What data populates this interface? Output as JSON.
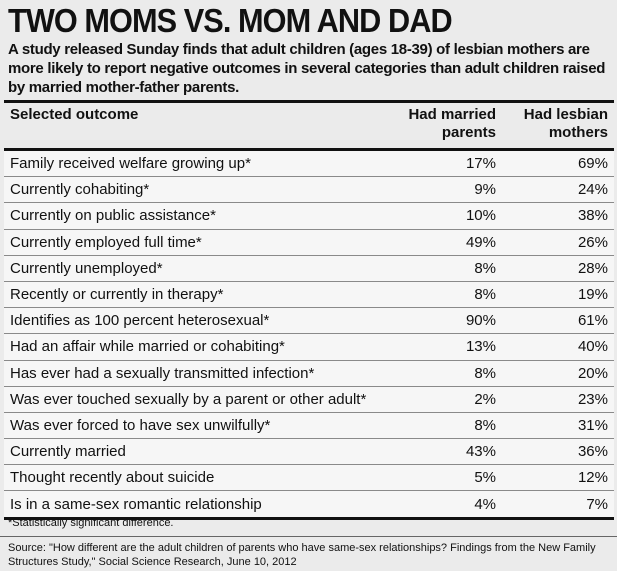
{
  "header": {
    "title": "TWO MOMS VS. MOM AND DAD",
    "subtitle": "A study released Sunday finds that adult children (ages 18-39) of lesbian mothers are more likely to report negative outcomes in several categories than adult children raised by married mother-father parents."
  },
  "table": {
    "columns": [
      "Selected outcome",
      "Had married parents",
      "Had lesbian mothers"
    ],
    "rows": [
      [
        "Family received welfare growing up*",
        "17%",
        "69%"
      ],
      [
        "Currently cohabiting*",
        "9%",
        "24%"
      ],
      [
        "Currently on public assistance*",
        "10%",
        "38%"
      ],
      [
        "Currently employed full time*",
        "49%",
        "26%"
      ],
      [
        "Currently unemployed*",
        "8%",
        "28%"
      ],
      [
        "Recently or currently in therapy*",
        "8%",
        "19%"
      ],
      [
        "Identifies as 100 percent heterosexual*",
        "90%",
        "61%"
      ],
      [
        "Had an affair while married or cohabiting*",
        "13%",
        "40%"
      ],
      [
        "Has ever had a sexually transmitted infection*",
        "8%",
        "20%"
      ],
      [
        "Was ever touched sexually by a parent or other adult*",
        "2%",
        "23%"
      ],
      [
        "Was ever forced to have sex unwilfully*",
        "8%",
        "31%"
      ],
      [
        "Currently married",
        "43%",
        "36%"
      ],
      [
        "Thought recently about suicide",
        "5%",
        "12%"
      ],
      [
        "Is in a same-sex romantic relationship",
        "4%",
        "7%"
      ]
    ]
  },
  "footnote": "*Statistically significant difference.",
  "source": "Source: \"How different are the adult children of parents who have same-sex relationships? Findings from the New Family Structures Study,\" Social Science Research, June 10, 2012"
}
